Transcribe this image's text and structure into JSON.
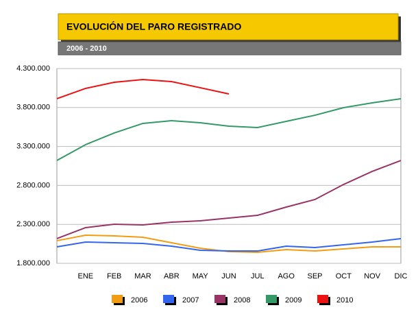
{
  "chart_data": {
    "type": "line",
    "title": "EVOLUCIÓN DEL PARO REGISTRADO",
    "subtitle": "2006 - 2010",
    "categories": [
      null,
      "ENE",
      "FEB",
      "MAR",
      "ABR",
      "MAY",
      "JUN",
      "JUL",
      "AGO",
      "SEP",
      "OCT",
      "NOV",
      "DIC"
    ],
    "series": [
      {
        "name": "2006",
        "color": "#f39c12",
        "values": [
          2090000,
          2161000,
          2152000,
          2134000,
          2064000,
          1994000,
          1950000,
          1941000,
          1976000,
          1958000,
          1985000,
          2011000,
          2011000
        ]
      },
      {
        "name": "2007",
        "color": "#3366ee",
        "values": [
          2011000,
          2073000,
          2064000,
          2055000,
          2020000,
          1967000,
          1958000,
          1958000,
          2020000,
          2002000,
          2038000,
          2073000,
          2117000
        ]
      },
      {
        "name": "2008",
        "color": "#993366",
        "values": [
          2117000,
          2258000,
          2302000,
          2293000,
          2328000,
          2346000,
          2381000,
          2416000,
          2522000,
          2619000,
          2812000,
          2980000,
          3120000
        ]
      },
      {
        "name": "2009",
        "color": "#339966",
        "values": [
          3120000,
          3323000,
          3473000,
          3596000,
          3631000,
          3605000,
          3561000,
          3543000,
          3622000,
          3701000,
          3798000,
          3860000,
          3913000
        ]
      },
      {
        "name": "2010",
        "color": "#ee1111",
        "values": [
          3913000,
          4045000,
          4124000,
          4159000,
          4133000,
          4054000,
          3974000,
          null,
          null,
          null,
          null,
          null,
          null
        ]
      }
    ],
    "ylim": [
      1800000,
      4300000
    ],
    "yticks": [
      {
        "value": 1800000,
        "label": "1.800.000"
      },
      {
        "value": 2300000,
        "label": "2.300.000"
      },
      {
        "value": 2800000,
        "label": "2.800.000"
      },
      {
        "value": 3300000,
        "label": "3.300.000"
      },
      {
        "value": 3800000,
        "label": "3.800.000"
      },
      {
        "value": 4300000,
        "label": "4.300.000"
      }
    ],
    "grid": true
  }
}
